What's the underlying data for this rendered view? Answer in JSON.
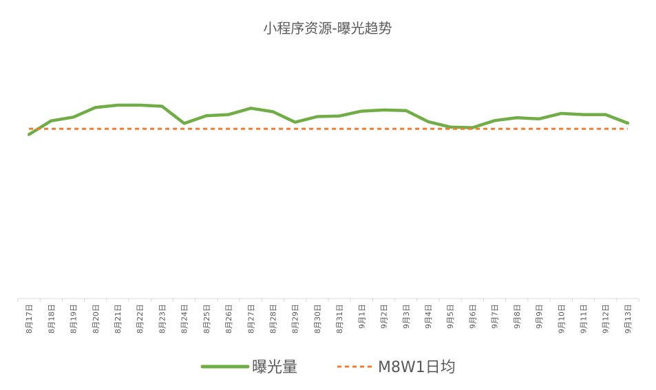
{
  "chart_data": {
    "type": "line",
    "title": "小程序资源-曝光趋势",
    "xlabel": "",
    "ylabel": "",
    "categories": [
      "8月17日",
      "8月18日",
      "8月19日",
      "8月20日",
      "8月21日",
      "8月22日",
      "8月23日",
      "8月24日",
      "8月25日",
      "8月26日",
      "8月27日",
      "8月28日",
      "8月29日",
      "8月30日",
      "8月31日",
      "9月1日",
      "9月2日",
      "9月3日",
      "9月4日",
      "9月5日",
      "9月6日",
      "9月7日",
      "9月8日",
      "9月9日",
      "9月10日",
      "9月11日",
      "9月12日",
      "9月13日"
    ],
    "ylim": [
      0,
      100
    ],
    "y_axis_visible": false,
    "grid": false,
    "legend_position": "bottom",
    "series": [
      {
        "name": "曝光量",
        "color": "#70AD47",
        "style": "solid",
        "values": [
          57.6,
          62.4,
          63.7,
          67.1,
          67.9,
          67.9,
          67.5,
          61.5,
          64.2,
          64.6,
          66.8,
          65.6,
          61.9,
          63.9,
          64.1,
          65.8,
          66.2,
          66.0,
          62.1,
          60.2,
          60.0,
          62.5,
          63.5,
          63.1,
          65.0,
          64.6,
          64.6,
          61.6
        ]
      },
      {
        "name": "M8W1日均",
        "color": "#ED7D31",
        "style": "dashed",
        "values": [
          59.6,
          59.6,
          59.6,
          59.6,
          59.6,
          59.6,
          59.6,
          59.6,
          59.6,
          59.6,
          59.6,
          59.6,
          59.6,
          59.6,
          59.6,
          59.6,
          59.6,
          59.6,
          59.6,
          59.6,
          59.6,
          59.6,
          59.6,
          59.6,
          59.6,
          59.6,
          59.6,
          59.6
        ]
      }
    ]
  }
}
